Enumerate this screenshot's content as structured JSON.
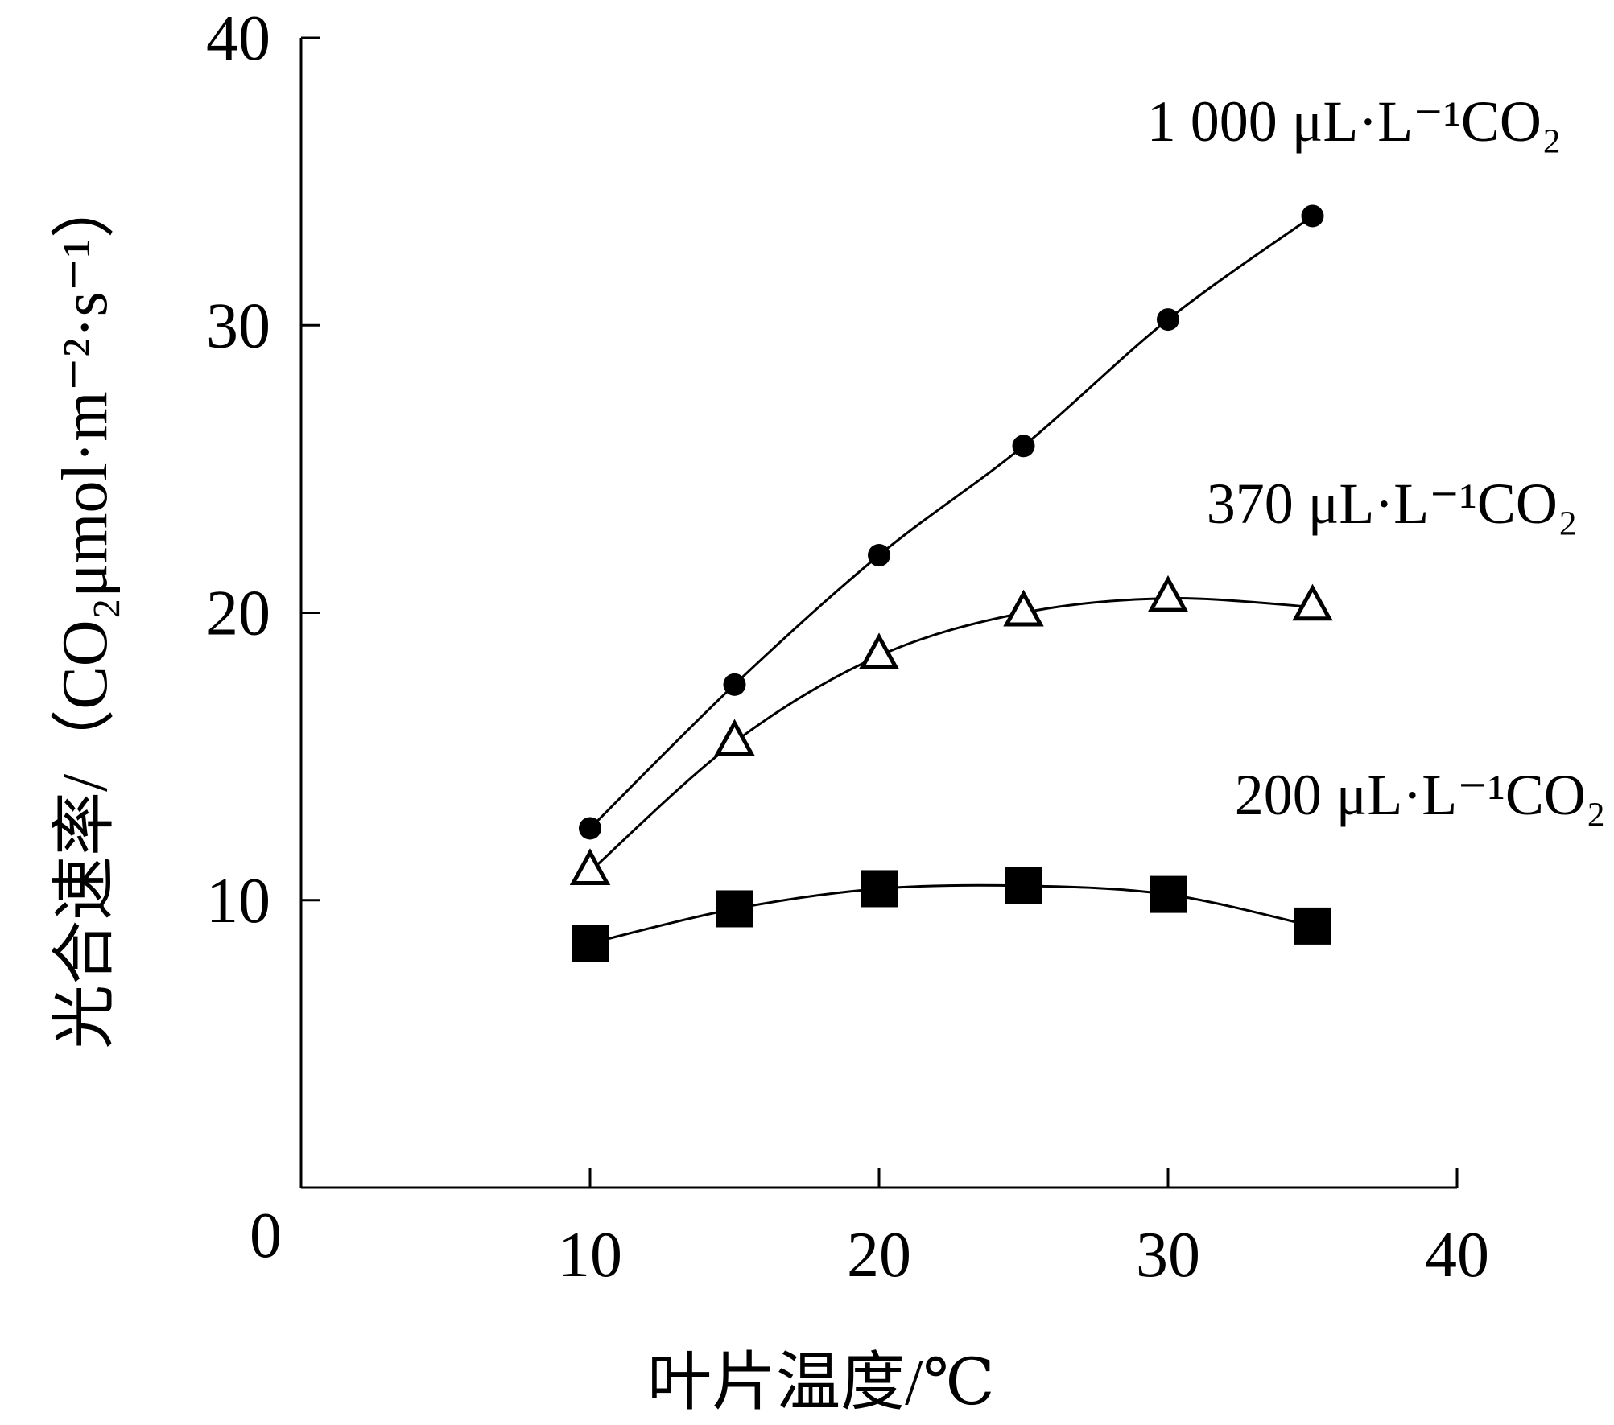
{
  "chart_data": {
    "type": "line",
    "xlabel": "叶片温度/℃",
    "ylabel": "光合速率/（CO₂μmol·m⁻²·s⁻¹）",
    "xlim": [
      0,
      40
    ],
    "ylim": [
      0,
      40
    ],
    "x_ticks": [
      "10",
      "20",
      "30",
      "40"
    ],
    "y_ticks": [
      "10",
      "20",
      "30",
      "40"
    ],
    "origin_label": "0",
    "grid": false,
    "series": [
      {
        "name": "1 000 μL·L⁻¹CO₂",
        "marker": "filled-circle",
        "x": [
          10,
          15,
          20,
          25,
          30,
          35
        ],
        "y": [
          12.5,
          17.5,
          22.0,
          25.8,
          30.2,
          33.8
        ]
      },
      {
        "name": "370 μL·L⁻¹CO₂",
        "marker": "open-triangle",
        "x": [
          10,
          15,
          20,
          25,
          30,
          35
        ],
        "y": [
          11.0,
          15.5,
          18.5,
          20.0,
          20.5,
          20.2
        ]
      },
      {
        "name": "200 μL·L⁻¹CO₂",
        "marker": "filled-square",
        "x": [
          10,
          15,
          20,
          25,
          30,
          35
        ],
        "y": [
          8.5,
          9.7,
          10.4,
          10.5,
          10.2,
          9.1
        ]
      }
    ]
  }
}
